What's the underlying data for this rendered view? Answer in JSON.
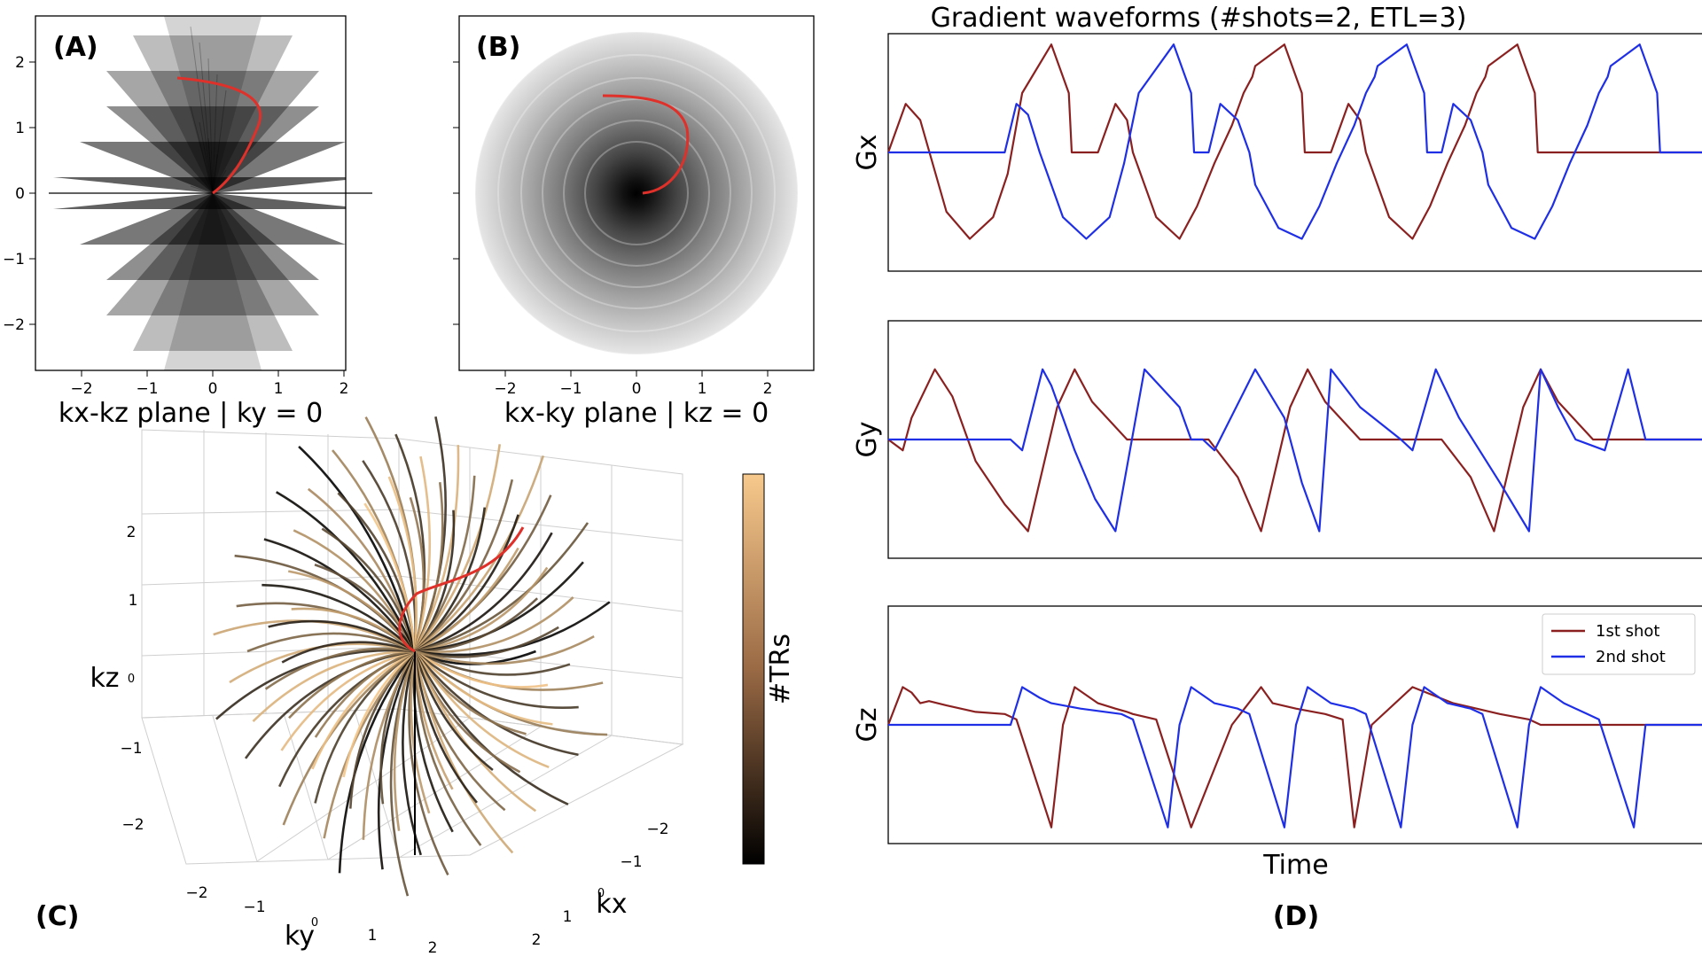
{
  "panels": {
    "a": {
      "label": "(A)",
      "xlabel": "kx-kz plane | ky = 0",
      "xticks": [
        "−2",
        "−1",
        "0",
        "1",
        "2"
      ],
      "yticks": [
        "2",
        "1",
        "0",
        "−1",
        "−2"
      ]
    },
    "b": {
      "label": "(B)",
      "xlabel": "kx-ky plane | kz = 0",
      "xticks": [
        "−2",
        "−1",
        "0",
        "1",
        "2"
      ]
    },
    "c": {
      "label": "(C)",
      "xlabel": "kx",
      "ylabel": "ky",
      "zlabel": "kz",
      "zticks": [
        "2",
        "1",
        "0",
        "−1",
        "−2"
      ],
      "kyticks": [
        "−2",
        "−1",
        "0",
        "1",
        "2"
      ],
      "kxticks": [
        "−2",
        "−1",
        "0",
        "1",
        "2"
      ],
      "colorbar_label": "#TRs"
    },
    "d": {
      "label": "(D)",
      "title": "Gradient waveforms (#shots=2, ETL=3)",
      "ylabels": [
        "Gx",
        "Gy",
        "Gz"
      ],
      "xlabel": "Time",
      "legend": [
        "1st shot",
        "2nd shot"
      ]
    }
  },
  "colors": {
    "shot1": "#8b2020",
    "shot2": "#1f2fe6",
    "trajectory_highlight": "#e0302a",
    "colormap_low": "#000000",
    "colormap_high": "#f7c98c"
  },
  "chart_data": [
    {
      "type": "line",
      "title": "Gradient waveforms (#shots=2, ETL=3)",
      "xlabel": "Time",
      "ylabel": "Gx",
      "series": [
        {
          "name": "1st shot",
          "x": [
            0,
            0.3,
            0.55,
            1.0,
            1.4,
            1.8,
            2.05,
            2.15,
            2.3,
            2.8,
            3.1,
            3.15,
            3.4,
            3.6,
            3.9,
            4.1,
            4.2,
            4.6,
            5.0,
            5.3,
            5.6,
            5.9,
            6.1,
            6.25,
            6.3,
            6.8,
            7.1,
            7.15,
            7.4,
            7.6,
            7.9,
            8.1,
            8.2,
            8.6,
            9.0,
            9.3,
            9.6,
            9.9,
            10.1,
            10.25,
            10.3,
            10.8,
            11.1,
            11.15,
            14.0
          ],
          "y": [
            0,
            0.45,
            0.3,
            -0.55,
            -0.8,
            -0.6,
            -0.2,
            0.1,
            0.55,
            1.0,
            0.55,
            0,
            0,
            0,
            0.45,
            0.3,
            0,
            -0.6,
            -0.8,
            -0.5,
            -0.1,
            0.25,
            0.55,
            0.7,
            0.8,
            1.0,
            0.55,
            0,
            0,
            0,
            0.45,
            0.3,
            0,
            -0.6,
            -0.8,
            -0.5,
            -0.1,
            0.25,
            0.55,
            0.7,
            0.8,
            1.0,
            0.55,
            0,
            0
          ]
        },
        {
          "name": "2nd shot",
          "x": [
            0,
            2.0,
            2.2,
            2.4,
            2.6,
            3.0,
            3.4,
            3.8,
            4.05,
            4.3,
            4.9,
            5.2,
            5.25,
            5.5,
            5.7,
            6.0,
            6.2,
            6.3,
            6.7,
            7.1,
            7.4,
            7.7,
            8.0,
            8.2,
            8.35,
            8.4,
            8.9,
            9.2,
            9.25,
            9.5,
            9.7,
            10.0,
            10.2,
            10.3,
            10.7,
            11.1,
            11.4,
            11.7,
            12.0,
            12.2,
            12.35,
            12.4,
            12.9,
            13.2,
            13.25,
            14.0
          ],
          "y": [
            0,
            0,
            0.45,
            0.35,
            0,
            -0.6,
            -0.8,
            -0.6,
            -0.1,
            0.55,
            1.0,
            0.55,
            0,
            0,
            0.45,
            0.3,
            0,
            -0.3,
            -0.7,
            -0.8,
            -0.5,
            -0.1,
            0.25,
            0.55,
            0.7,
            0.8,
            1.0,
            0.55,
            0,
            0,
            0.45,
            0.3,
            0,
            -0.3,
            -0.7,
            -0.8,
            -0.5,
            -0.1,
            0.25,
            0.55,
            0.7,
            0.8,
            1.0,
            0.55,
            0,
            0
          ]
        }
      ]
    },
    {
      "type": "line",
      "ylabel": "Gy",
      "series": [
        {
          "name": "1st shot",
          "x": [
            0,
            0.25,
            0.4,
            0.8,
            1.1,
            1.5,
            2.0,
            2.4,
            2.9,
            3.2,
            3.5,
            4.1,
            4.7,
            4.95,
            5.5,
            6.0,
            6.4,
            6.9,
            7.2,
            7.5,
            8.1,
            8.7,
            8.95,
            9.5,
            10.0,
            10.4,
            10.9,
            11.2,
            11.5,
            12.1,
            12.7,
            12.95,
            14.0
          ],
          "y": [
            0,
            -0.1,
            0.2,
            0.65,
            0.4,
            -0.2,
            -0.6,
            -0.85,
            0.3,
            0.65,
            0.35,
            0,
            0,
            0,
            0,
            -0.35,
            -0.85,
            0.3,
            0.65,
            0.35,
            0,
            0,
            0,
            0,
            -0.35,
            -0.85,
            0.3,
            0.65,
            0.35,
            0,
            0,
            0,
            0
          ]
        },
        {
          "name": "2nd shot",
          "x": [
            0,
            2.1,
            2.3,
            2.65,
            2.8,
            3.2,
            3.55,
            3.9,
            4.4,
            5.0,
            5.2,
            5.4,
            5.6,
            6.3,
            6.8,
            7.1,
            7.4,
            7.6,
            8.1,
            8.8,
            9.0,
            9.4,
            9.8,
            10.5,
            11.0,
            11.2,
            11.5,
            11.8,
            12.3,
            12.7,
            13.0,
            14.0
          ],
          "y": [
            0,
            0,
            -0.1,
            0.65,
            0.5,
            -0.1,
            -0.55,
            -0.85,
            0.65,
            0.3,
            0,
            0,
            -0.1,
            0.65,
            0.2,
            -0.4,
            -0.85,
            0.65,
            0.3,
            0,
            -0.1,
            0.65,
            0.2,
            -0.4,
            -0.85,
            0.65,
            0.3,
            0,
            -0.1,
            0.65,
            0,
            0
          ]
        }
      ]
    },
    {
      "type": "line",
      "ylabel": "Gz",
      "series": [
        {
          "name": "1st shot",
          "x": [
            0,
            0.25,
            0.4,
            0.55,
            0.7,
            1.0,
            1.5,
            2.0,
            2.2,
            2.8,
            3.0,
            3.2,
            3.6,
            3.9,
            4.1,
            4.2,
            4.6,
            5.2,
            5.9,
            6.4,
            6.6,
            7.0,
            7.5,
            7.8,
            8.0,
            8.3,
            9.0,
            9.7,
            10.5,
            11.0,
            11.2,
            14.0
          ],
          "y": [
            0,
            0.35,
            0.3,
            0.2,
            0.22,
            0.18,
            0.12,
            0.1,
            0.05,
            -0.95,
            0,
            0.35,
            0.2,
            0.15,
            0.12,
            0.1,
            0.05,
            -0.95,
            0,
            0.35,
            0.2,
            0.15,
            0.1,
            0.05,
            -0.95,
            0,
            0.35,
            0.2,
            0.1,
            0.05,
            0,
            0
          ]
        },
        {
          "name": "2nd shot",
          "x": [
            0,
            2.1,
            2.3,
            2.6,
            2.8,
            3.3,
            4.0,
            4.2,
            4.8,
            5.0,
            5.2,
            5.6,
            6.0,
            6.2,
            6.8,
            7.0,
            7.2,
            7.6,
            8.0,
            8.2,
            8.8,
            9.0,
            9.2,
            9.6,
            10.0,
            10.2,
            10.8,
            11.0,
            11.2,
            11.6,
            12.0,
            12.2,
            12.8,
            13.0,
            14.0
          ],
          "y": [
            0,
            0,
            0.35,
            0.25,
            0.2,
            0.15,
            0.1,
            0.05,
            -0.95,
            0,
            0.35,
            0.2,
            0.15,
            0.1,
            -0.95,
            0,
            0.35,
            0.2,
            0.15,
            0.1,
            -0.95,
            0,
            0.35,
            0.2,
            0.15,
            0.1,
            -0.95,
            0,
            0.35,
            0.2,
            0.1,
            0.05,
            -0.95,
            0,
            0
          ]
        }
      ]
    }
  ]
}
